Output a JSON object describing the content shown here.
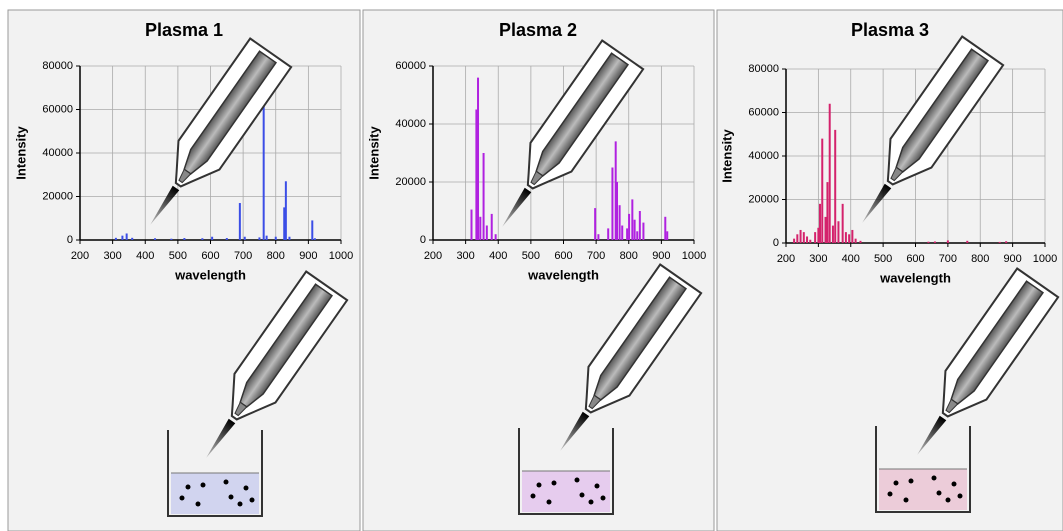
{
  "chart_data": [
    {
      "type": "bar",
      "title": "Plasma 1",
      "y_label": "Intensity",
      "x_label": "wavelength",
      "color": "#3b4ee6",
      "grid": true,
      "xlim": [
        200,
        1000
      ],
      "xticks": [
        200,
        300,
        400,
        500,
        600,
        700,
        800,
        900,
        1000
      ],
      "ylim": [
        0,
        80000
      ],
      "yticks": [
        0,
        20000,
        40000,
        60000,
        80000
      ],
      "x": [
        310,
        330,
        343,
        360,
        430,
        480,
        520,
        575,
        605,
        650,
        690,
        705,
        750,
        763,
        772,
        800,
        826,
        831,
        842,
        912,
        920
      ],
      "values": [
        1000,
        2000,
        3000,
        1000,
        800,
        600,
        900,
        800,
        1500,
        900,
        17000,
        1500,
        1200,
        62000,
        2000,
        1500,
        15000,
        27000,
        1500,
        9000,
        800
      ]
    },
    {
      "type": "bar",
      "title": "Plasma 2",
      "y_label": "Intensity",
      "x_label": "wavelength",
      "color": "#b021e0",
      "grid": true,
      "xlim": [
        200,
        1000
      ],
      "xticks": [
        200,
        300,
        400,
        500,
        600,
        700,
        800,
        900,
        1000
      ],
      "ylim": [
        0,
        60000
      ],
      "yticks": [
        0,
        20000,
        40000,
        60000
      ],
      "x": [
        318,
        333,
        338,
        345,
        355,
        365,
        380,
        392,
        697,
        707,
        737,
        750,
        760,
        764,
        772,
        780,
        795,
        801,
        811,
        818,
        826,
        834,
        845,
        912,
        918
      ],
      "values": [
        10500,
        45000,
        56000,
        8000,
        30000,
        5000,
        9000,
        2000,
        11000,
        2000,
        4000,
        25000,
        34000,
        20000,
        12000,
        5000,
        4000,
        9000,
        14000,
        7000,
        3000,
        10000,
        6000,
        8000,
        3000
      ]
    },
    {
      "type": "bar",
      "title": "Plasma 3",
      "y_label": "Intensity",
      "x_label": "wavelength",
      "color": "#d4226c",
      "grid": true,
      "xlim": [
        200,
        1000
      ],
      "xticks": [
        200,
        300,
        400,
        500,
        600,
        700,
        800,
        900,
        1000
      ],
      "ylim": [
        0,
        80000
      ],
      "yticks": [
        0,
        20000,
        40000,
        60000,
        80000
      ],
      "x": [
        225,
        235,
        245,
        255,
        265,
        275,
        290,
        300,
        305,
        312,
        322,
        328,
        335,
        345,
        352,
        362,
        375,
        385,
        395,
        405,
        415,
        430,
        640,
        660,
        700,
        760,
        860,
        880
      ],
      "values": [
        2000,
        4000,
        6000,
        5000,
        3000,
        1500,
        5000,
        7000,
        18000,
        48000,
        12000,
        28000,
        64000,
        8000,
        52000,
        10000,
        18000,
        5000,
        4000,
        6000,
        2000,
        1000,
        600,
        700,
        1200,
        1000,
        500,
        800
      ]
    }
  ]
}
